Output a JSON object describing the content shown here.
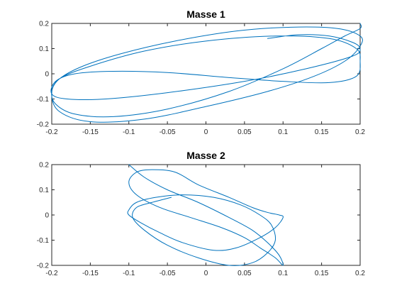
{
  "chart_data": [
    {
      "type": "line",
      "title": "Masse 1",
      "xlabel": "",
      "ylabel": "",
      "xlim": [
        -0.2,
        0.2
      ],
      "ylim": [
        -0.2,
        0.2
      ],
      "xticks": [
        -0.2,
        -0.15,
        -0.1,
        -0.05,
        0,
        0.05,
        0.1,
        0.15,
        0.2
      ],
      "xtick_labels": [
        "-0.2",
        "-0.15",
        "-0.1",
        "-0.05",
        "0",
        "0.05",
        "0.1",
        "0.15",
        "0.2"
      ],
      "yticks": [
        -0.2,
        -0.1,
        0,
        0.1,
        0.2
      ],
      "ytick_labels": [
        "-0.2",
        "-0.1",
        "0",
        "0.1",
        "0.2"
      ],
      "grid": false,
      "color": "#0072BD",
      "series": [
        {
          "x": [
            0.08,
            0.12,
            0.16,
            0.19,
            0.2,
            0.19,
            0.13,
            0.05,
            -0.05,
            -0.13,
            -0.18,
            -0.2,
            -0.195,
            -0.17,
            -0.12,
            -0.05,
            0.03,
            0.1,
            0.16,
            0.195,
            0.2,
            0.195,
            0.16,
            0.09,
            0.0,
            -0.08,
            -0.15,
            -0.19,
            -0.2,
            -0.19,
            -0.15,
            -0.08,
            0.0,
            0.08,
            0.14,
            0.18,
            0.2,
            0.2,
            0.17,
            0.11,
            0.04,
            -0.04,
            -0.11,
            -0.16,
            -0.19,
            -0.2,
            -0.195,
            -0.17,
            -0.12,
            -0.05,
            0.03,
            0.1,
            0.15,
            0.18,
            0.2,
            0.2
          ],
          "y": [
            0.14,
            0.155,
            0.15,
            0.125,
            0.1,
            0.07,
            0.02,
            -0.03,
            -0.075,
            -0.1,
            -0.1,
            -0.08,
            -0.03,
            0.0,
            0.01,
            0.005,
            -0.015,
            -0.03,
            -0.035,
            -0.01,
            0.05,
            0.1,
            0.14,
            0.15,
            0.13,
            0.09,
            0.03,
            -0.02,
            -0.08,
            -0.15,
            -0.19,
            -0.18,
            -0.13,
            -0.07,
            -0.01,
            0.05,
            0.11,
            0.15,
            0.18,
            0.185,
            0.17,
            0.13,
            0.08,
            0.03,
            -0.02,
            -0.07,
            -0.12,
            -0.16,
            -0.17,
            -0.14,
            -0.07,
            0.02,
            0.1,
            0.15,
            0.18,
            0.2
          ]
        }
      ]
    },
    {
      "type": "line",
      "title": "Masse 2",
      "xlabel": "",
      "ylabel": "",
      "xlim": [
        -0.2,
        0.2
      ],
      "ylim": [
        -0.2,
        0.2
      ],
      "xticks": [
        -0.2,
        -0.15,
        -0.1,
        -0.05,
        0,
        0.05,
        0.1,
        0.15,
        0.2
      ],
      "xtick_labels": [
        "-0.2",
        "-0.15",
        "-0.1",
        "-0.05",
        "0",
        "0.05",
        "0.1",
        "0.15",
        "0.2"
      ],
      "yticks": [
        -0.2,
        -0.1,
        0,
        0.1,
        0.2
      ],
      "ytick_labels": [
        "-0.2",
        "-0.1",
        "0",
        "0.1",
        "0.2"
      ],
      "grid": false,
      "color": "#0072BD",
      "series": [
        {
          "x": [
            -0.1,
            -0.08,
            -0.05,
            -0.01,
            0.03,
            0.06,
            0.08,
            0.095,
            0.1,
            0.09,
            0.07,
            0.05,
            0.02,
            -0.02,
            -0.06,
            -0.09,
            -0.1,
            -0.09,
            -0.07,
            -0.04,
            -0.01,
            0.03,
            0.06,
            0.08,
            0.095,
            0.1,
            0.09,
            0.07,
            0.04,
            0.01,
            -0.03,
            -0.06,
            -0.085,
            -0.1,
            -0.1,
            -0.09,
            -0.065,
            -0.03,
            0.01,
            0.045,
            0.07,
            0.085,
            0.09,
            0.08,
            0.06,
            0.03,
            -0.01,
            -0.05,
            -0.08,
            -0.095,
            -0.09,
            -0.07,
            -0.045
          ],
          "y": [
            0.2,
            0.15,
            0.1,
            0.05,
            -0.01,
            -0.06,
            -0.11,
            -0.16,
            -0.2,
            -0.17,
            -0.13,
            -0.09,
            -0.05,
            -0.01,
            0.03,
            0.08,
            0.13,
            0.17,
            0.18,
            0.17,
            0.12,
            0.07,
            0.03,
            0.01,
            0.0,
            -0.01,
            -0.05,
            -0.09,
            -0.13,
            -0.14,
            -0.11,
            -0.07,
            -0.03,
            0.0,
            0.02,
            0.05,
            0.07,
            0.08,
            0.07,
            0.04,
            0.0,
            -0.04,
            -0.1,
            -0.15,
            -0.19,
            -0.2,
            -0.17,
            -0.12,
            -0.06,
            -0.01,
            0.03,
            0.05,
            0.07
          ]
        }
      ]
    }
  ]
}
